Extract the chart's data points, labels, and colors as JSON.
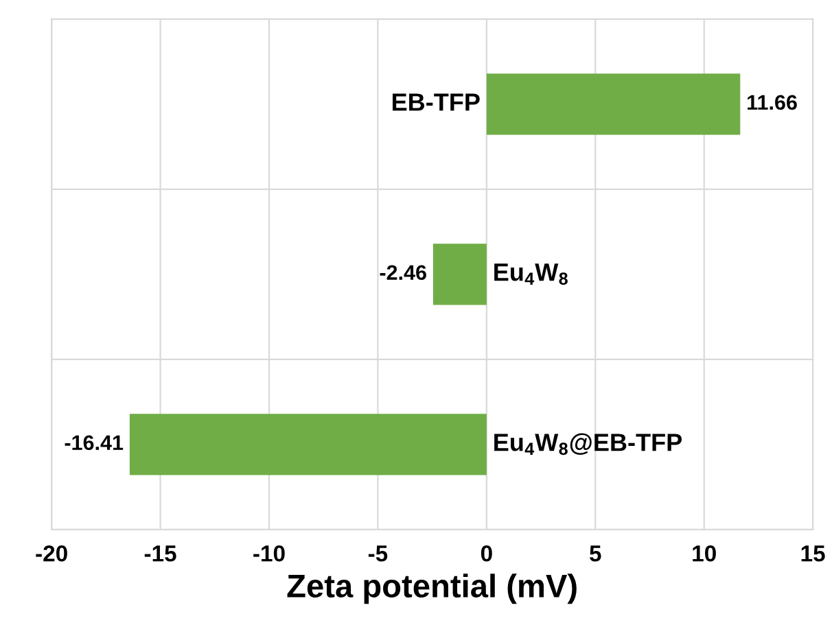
{
  "chart_data": {
    "type": "bar",
    "orientation": "horizontal",
    "xlabel": "Zeta potential (mV)",
    "categories": [
      "EB-TFP",
      "Eu$_{4}$W$_{8}$",
      "Eu$_{4}$W$_{8}$@EB-TFP"
    ],
    "values": [
      11.66,
      -2.46,
      -16.41
    ],
    "color": "#70ad47",
    "data_labels": true,
    "xlim": [
      -20,
      15
    ],
    "xticks": [
      -20,
      -15,
      -10,
      -5,
      0,
      5,
      10,
      15
    ],
    "grid": true,
    "tick_labels": "x"
  }
}
